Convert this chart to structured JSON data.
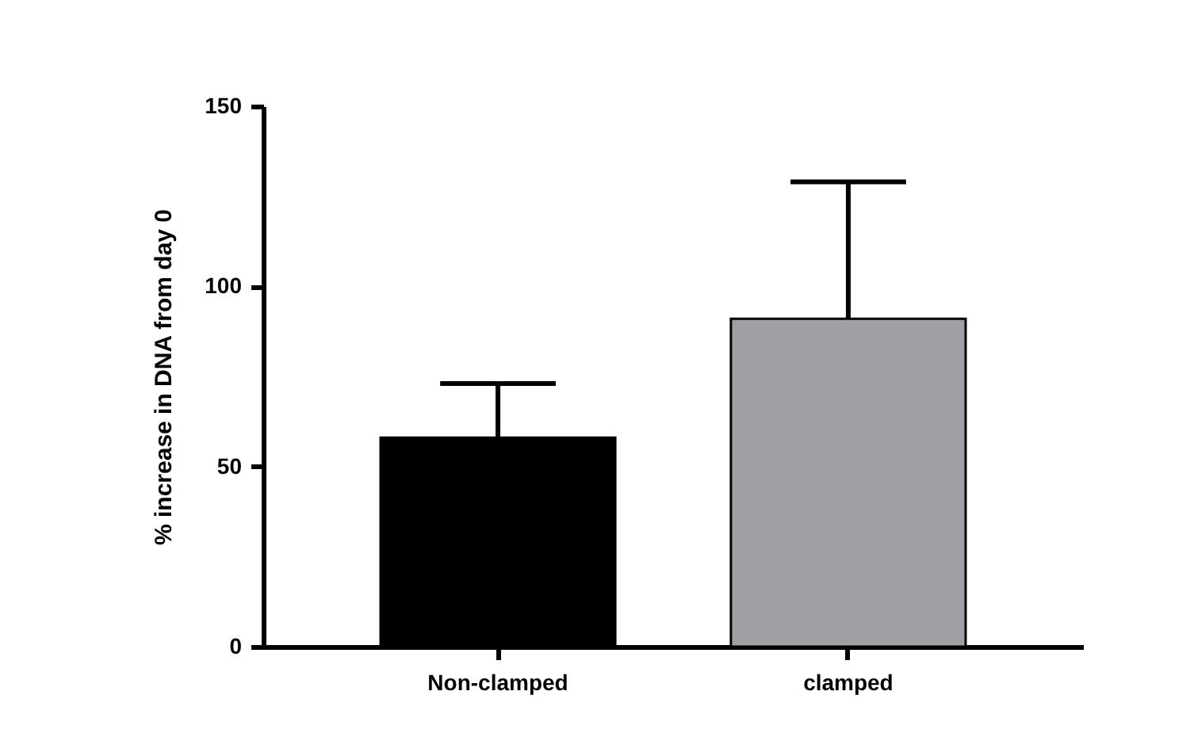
{
  "chart_data": {
    "type": "bar",
    "ylabel": "% increase in DNA from day 0",
    "categories": [
      "Non-clamped",
      "clamped"
    ],
    "values": [
      58,
      91
    ],
    "colors": [
      "#000000",
      "#a09fa4"
    ],
    "errors": [
      [
        58,
        73
      ],
      [
        91,
        129
      ]
    ],
    "ylim": [
      0,
      150
    ],
    "yticks": [
      0,
      50,
      100,
      150
    ],
    "grid": false
  }
}
